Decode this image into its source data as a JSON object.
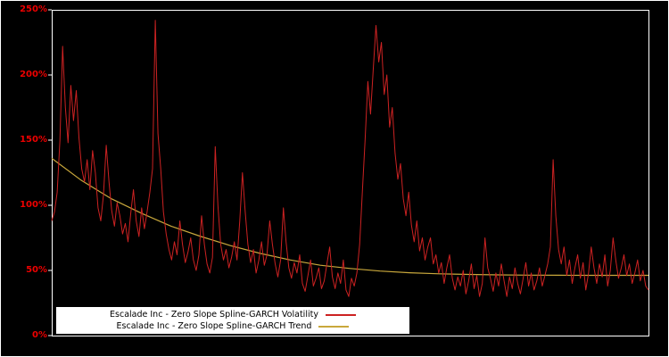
{
  "chart_data": {
    "type": "line",
    "title": "",
    "xlabel": "",
    "ylabel": "",
    "ylim": [
      0,
      250
    ],
    "grid": false,
    "background_color": "#000000",
    "axis_color": "#ffffff",
    "tick_label_color": "#ee0000",
    "y_ticks": [
      0,
      50,
      100,
      150,
      200,
      250
    ],
    "y_tick_labels": [
      "0%",
      "50%",
      "100%",
      "150%",
      "200%",
      "250%"
    ],
    "legend": {
      "position": "bottom-center-inside",
      "entries": [
        {
          "label": "Escalade Inc - Zero Slope Spline-GARCH Volatility",
          "color": "#cc2222"
        },
        {
          "label": "Escalade Inc - Zero Slope Spline-GARCH Trend",
          "color": "#c9a83c"
        }
      ]
    },
    "series": [
      {
        "name": "Escalade Inc - Zero Slope Spline-GARCH Volatility",
        "color": "#cc2222",
        "unit": "%",
        "values": [
          88,
          95,
          110,
          150,
          222,
          175,
          148,
          192,
          165,
          188,
          152,
          128,
          118,
          135,
          112,
          142,
          125,
          98,
          88,
          108,
          146,
          118,
          96,
          84,
          102,
          92,
          78,
          86,
          72,
          94,
          112,
          88,
          76,
          98,
          82,
          95,
          110,
          128,
          242,
          155,
          128,
          95,
          78,
          66,
          58,
          72,
          62,
          88,
          70,
          56,
          64,
          75,
          58,
          50,
          62,
          92,
          70,
          55,
          48,
          60,
          145,
          100,
          70,
          58,
          66,
          52,
          60,
          72,
          58,
          88,
          125,
          95,
          70,
          56,
          66,
          48,
          58,
          72,
          54,
          62,
          88,
          70,
          55,
          45,
          58,
          98,
          72,
          52,
          44,
          56,
          48,
          62,
          40,
          34,
          46,
          58,
          38,
          44,
          52,
          36,
          42,
          55,
          68,
          45,
          36,
          48,
          40,
          58,
          35,
          30,
          44,
          38,
          48,
          70,
          110,
          150,
          195,
          170,
          205,
          238,
          210,
          225,
          185,
          200,
          160,
          175,
          140,
          120,
          132,
          105,
          92,
          110,
          85,
          72,
          88,
          65,
          75,
          58,
          68,
          75,
          55,
          62,
          48,
          56,
          40,
          52,
          62,
          44,
          35,
          45,
          38,
          50,
          32,
          42,
          55,
          36,
          46,
          30,
          40,
          75,
          52,
          44,
          34,
          48,
          38,
          55,
          42,
          30,
          45,
          36,
          52,
          40,
          32,
          44,
          56,
          38,
          48,
          35,
          42,
          52,
          38,
          46,
          55,
          68,
          135,
          92,
          66,
          55,
          68,
          46,
          58,
          40,
          52,
          62,
          44,
          56,
          35,
          48,
          68,
          52,
          40,
          55,
          45,
          62,
          38,
          50,
          75,
          58,
          44,
          52,
          62,
          46,
          55,
          40,
          48,
          58,
          42,
          50,
          38,
          35
        ]
      },
      {
        "name": "Escalade Inc - Zero Slope Spline-GARCH Trend",
        "color": "#c9a83c",
        "unit": "%",
        "x": [
          0,
          0.05,
          0.1,
          0.15,
          0.2,
          0.25,
          0.3,
          0.35,
          0.4,
          0.45,
          0.5,
          0.55,
          0.6,
          0.65,
          0.7,
          0.75,
          0.8,
          0.85,
          0.9,
          0.95,
          1.0
        ],
        "values": [
          136,
          119,
          105,
          94,
          84,
          76,
          69,
          63,
          58,
          54,
          51.5,
          49.5,
          48.2,
          47.4,
          46.9,
          46.6,
          46.4,
          46.3,
          46.2,
          46.2,
          46.2
        ]
      }
    ]
  }
}
